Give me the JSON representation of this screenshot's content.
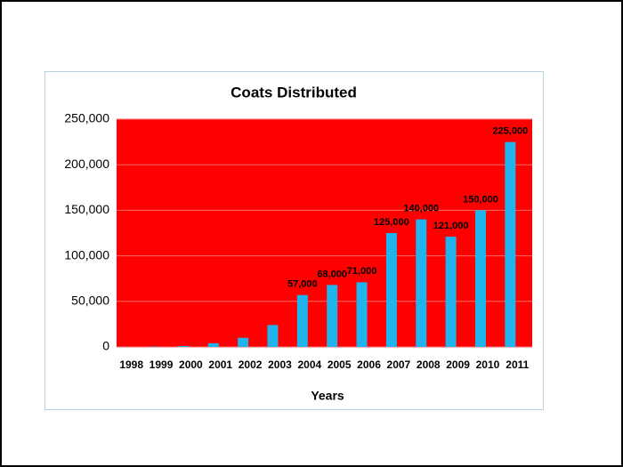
{
  "chart_data": {
    "type": "bar",
    "title": "Coats Distributed",
    "x_label": "Years",
    "categories": [
      "1998",
      "1999",
      "2000",
      "2001",
      "2002",
      "2003",
      "2004",
      "2005",
      "2006",
      "2007",
      "2008",
      "2009",
      "2010",
      "2011"
    ],
    "values": [
      200,
      500,
      1000,
      4000,
      10000,
      24000,
      57000,
      68000,
      71000,
      125000,
      140000,
      121000,
      150000,
      225000
    ],
    "value_labels": [
      null,
      null,
      null,
      null,
      null,
      null,
      "57,000",
      "68,000",
      "71,000",
      "125,000",
      "140,000",
      "121,000",
      "150,000",
      "225,000"
    ],
    "color": "#1fb4ec",
    "plot_background": "#ff0000",
    "ylim": [
      0,
      250000
    ],
    "yticks": [
      0,
      {
        "value": 50000,
        "label": "50,000"
      },
      {
        "value": 100000,
        "label": "100,000"
      },
      {
        "value": 150000,
        "label": "150,000"
      },
      {
        "value": 200000,
        "label": "200,000"
      },
      {
        "value": 250000,
        "label": "250,000"
      }
    ],
    "grid": true
  }
}
